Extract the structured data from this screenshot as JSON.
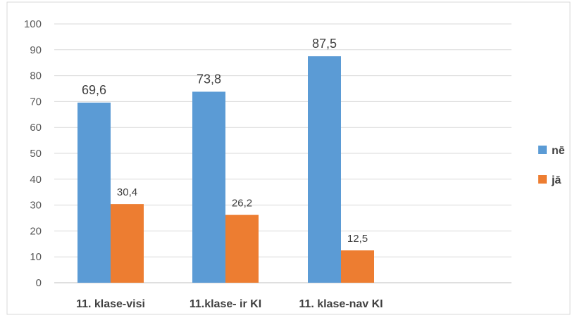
{
  "chart_data": {
    "type": "bar",
    "title": "",
    "xlabel": "",
    "ylabel": "",
    "categories": [
      "11. klase-visi",
      "11.klase- ir KI",
      "11. klase-nav KI"
    ],
    "series": [
      {
        "name": "nē",
        "color": "#5B9BD5",
        "values": [
          69.6,
          73.8,
          87.5
        ],
        "labels": [
          "69,6",
          "73,8",
          "87,5"
        ]
      },
      {
        "name": "jā",
        "color": "#ED7D31",
        "values": [
          30.4,
          26.2,
          12.5
        ],
        "labels": [
          "30,4",
          "26,2",
          "12,5"
        ]
      }
    ],
    "ylim": [
      0,
      100
    ],
    "yticks": [
      0,
      10,
      20,
      30,
      40,
      50,
      60,
      70,
      80,
      90,
      100
    ],
    "grid": true,
    "legend_position": "right"
  }
}
